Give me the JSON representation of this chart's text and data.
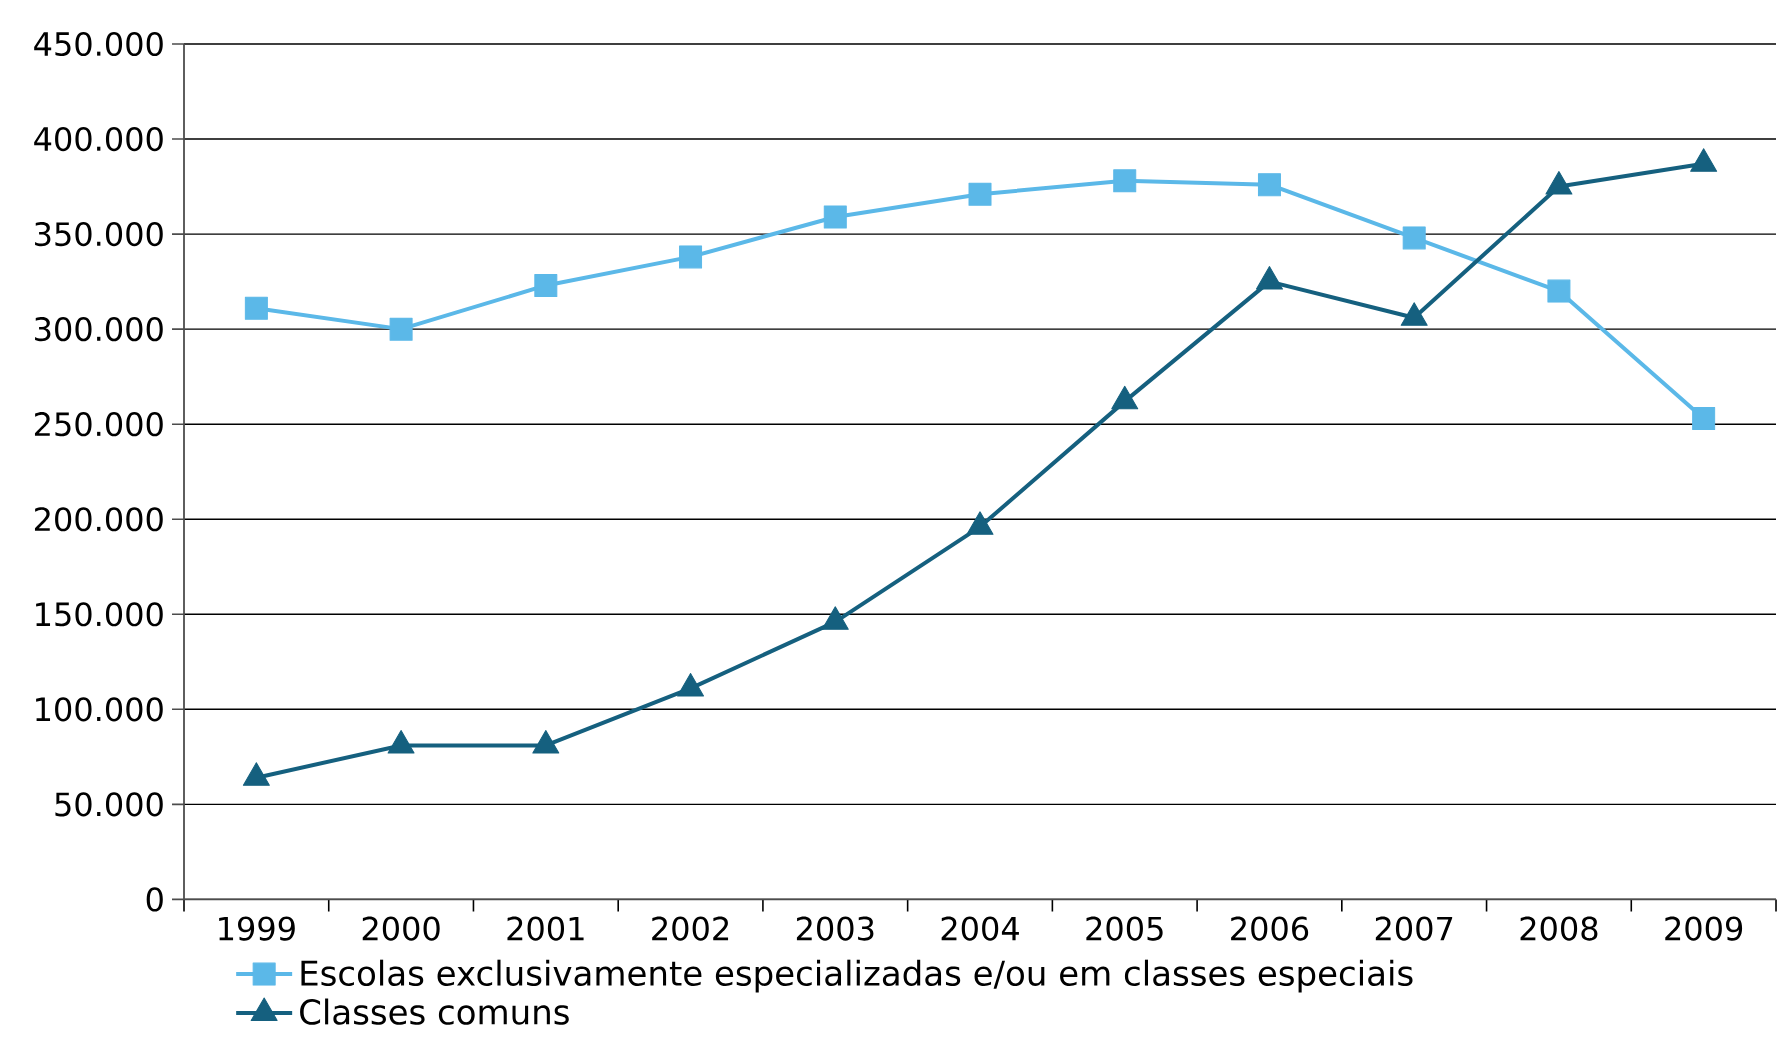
{
  "chart_data": {
    "type": "line",
    "categories": [
      "1999",
      "2000",
      "2001",
      "2002",
      "2003",
      "2004",
      "2005",
      "2006",
      "2007",
      "2008",
      "2009"
    ],
    "series": [
      {
        "name": "Escolas exclusivamente especializadas e/ou em classes especiais",
        "color": "#5bb8e8",
        "marker": "square",
        "values": [
          311000,
          300000,
          323000,
          338000,
          359000,
          371000,
          378000,
          376000,
          348000,
          320000,
          253000
        ]
      },
      {
        "name": "Classes comuns",
        "color": "#15607f",
        "marker": "triangle",
        "values": [
          64000,
          81000,
          81000,
          111000,
          146000,
          196000,
          262000,
          325000,
          306000,
          375000,
          387000
        ]
      }
    ],
    "ylim": [
      0,
      450000
    ],
    "yticks": [
      0,
      {
        "value": 50000,
        "label": "50.000"
      },
      {
        "value": 100000,
        "label": "100.000"
      },
      {
        "value": 150000,
        "label": "150.000"
      },
      {
        "value": 200000,
        "label": "200.000"
      },
      {
        "value": 250000,
        "label": "250.000"
      },
      {
        "value": 300000,
        "label": "300.000"
      },
      {
        "value": 350000,
        "label": "350.000"
      },
      {
        "value": 400000,
        "label": "400.000"
      },
      {
        "value": 450000,
        "label": "450.000"
      }
    ],
    "grid": "y",
    "legend": "bottom left"
  }
}
